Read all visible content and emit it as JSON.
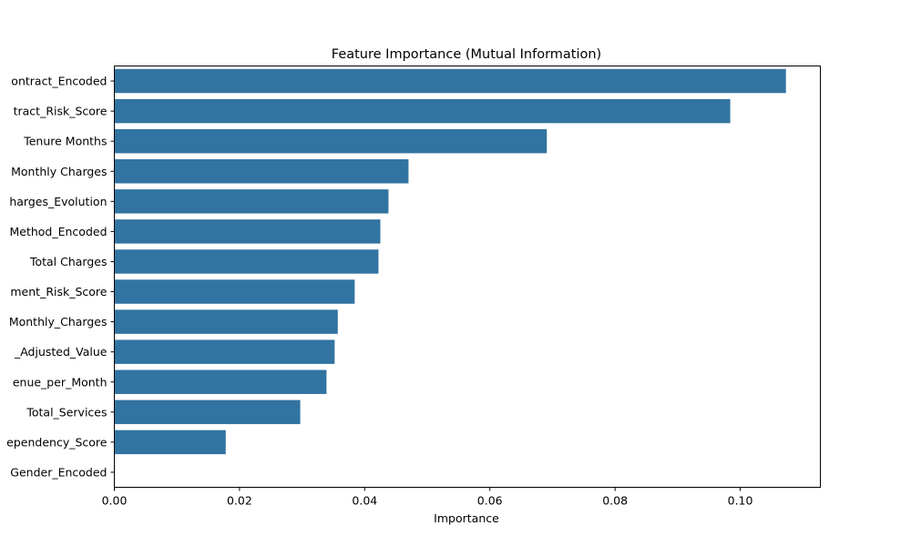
{
  "chart_data": {
    "type": "bar",
    "orientation": "horizontal",
    "title": "Feature Importance (Mutual Information)",
    "xlabel": "Importance",
    "ylabel": "",
    "xlim": [
      0,
      0.1128
    ],
    "xticks": [
      "0.00",
      "0.02",
      "0.04",
      "0.06",
      "0.08",
      "0.10"
    ],
    "grid": false,
    "bar_color": "#3274a1",
    "categories": [
      "ontract_Encoded",
      "tract_Risk_Score",
      "Tenure Months",
      "Monthly Charges",
      "harges_Evolution",
      "Method_Encoded",
      "Total Charges",
      "ment_Risk_Score",
      "Monthly_Charges",
      "_Adjusted_Value",
      "enue_per_Month",
      "Total_Services",
      "ependency_Score",
      "Gender_Encoded"
    ],
    "values": [
      0.1073,
      0.0984,
      0.0691,
      0.047,
      0.0438,
      0.0425,
      0.0422,
      0.0384,
      0.0357,
      0.0352,
      0.0339,
      0.0297,
      0.0178,
      0.0
    ]
  }
}
